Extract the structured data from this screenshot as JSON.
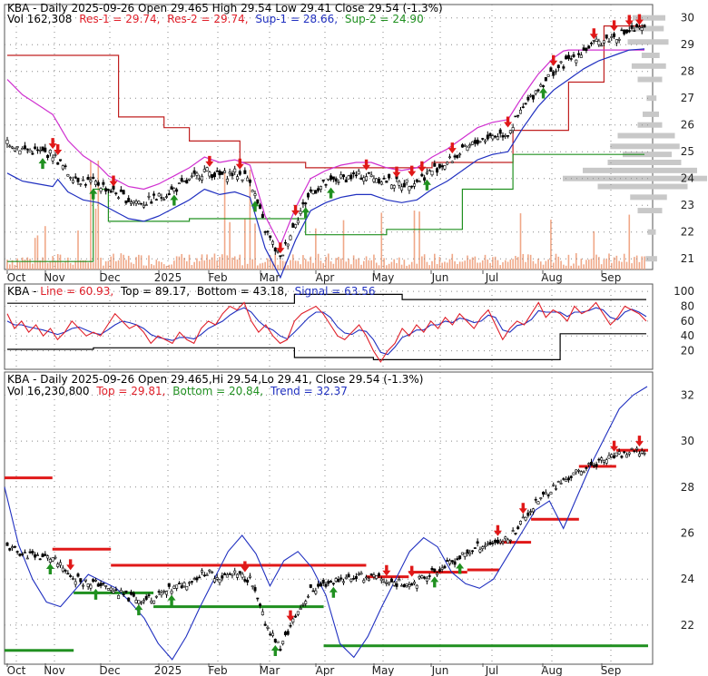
{
  "chart_data": [
    {
      "type": "candlestick",
      "panel": "price",
      "header_line1": "KBA - Daily 2025-09-26 Open 29.465  High 29.54  Low 29.41  Close 29.54  (-1.3%)",
      "header_line2": {
        "vol": "Vol 162,308",
        "res1": "Res-1 = 29.74,",
        "res2": "Res-2 = 29.74,",
        "sup1": "Sup-1 = 28.66,",
        "sup2": "Sup-2 = 24.90"
      },
      "y_ticks": [
        21,
        22,
        23,
        24,
        25,
        26,
        27,
        28,
        29,
        30
      ],
      "ylim": [
        20.6,
        30.6
      ],
      "x_labels": [
        "Oct",
        "Nov",
        "Dec",
        "2025",
        "Feb",
        "Mar",
        "Apr",
        "May",
        "Jun",
        "Jul",
        "Aug",
        "Sep"
      ],
      "close_series": {
        "x_index": [
          0,
          6,
          12,
          18,
          24,
          30,
          36,
          42,
          48,
          54,
          60,
          66,
          72,
          78,
          84,
          90,
          96,
          102,
          108,
          114,
          120,
          126,
          132,
          138,
          144,
          150,
          156,
          162,
          168,
          174,
          180,
          186,
          192,
          198,
          204,
          210,
          216,
          222,
          228,
          234,
          240,
          246,
          252
        ],
        "values": [
          25.4,
          25.1,
          25.0,
          24.9,
          24.2,
          23.9,
          23.8,
          23.5,
          23.2,
          23.1,
          23.3,
          23.6,
          23.9,
          24.3,
          24.1,
          24.2,
          24.0,
          22.1,
          21.0,
          22.4,
          23.5,
          23.8,
          24.0,
          24.1,
          24.1,
          23.9,
          23.8,
          23.9,
          24.3,
          24.6,
          25.0,
          25.4,
          25.6,
          25.7,
          26.6,
          27.4,
          28.0,
          28.4,
          28.8,
          29.1,
          29.3,
          29.5,
          29.54
        ]
      },
      "resistance_steps": [
        {
          "from": 0,
          "to": 44,
          "value": 28.6
        },
        {
          "from": 44,
          "to": 62,
          "value": 26.3
        },
        {
          "from": 62,
          "to": 72,
          "value": 25.9
        },
        {
          "from": 72,
          "to": 92,
          "value": 25.4
        },
        {
          "from": 92,
          "to": 118,
          "value": 24.6
        },
        {
          "from": 118,
          "to": 150,
          "value": 24.4
        },
        {
          "from": 150,
          "to": 168,
          "value": 24.4
        },
        {
          "from": 168,
          "to": 200,
          "value": 24.6
        },
        {
          "from": 200,
          "to": 222,
          "value": 25.8
        },
        {
          "from": 222,
          "to": 236,
          "value": 27.6
        },
        {
          "from": 236,
          "to": 252,
          "value": 29.7
        }
      ],
      "support_steps": [
        {
          "from": 0,
          "to": 34,
          "value": 20.9
        },
        {
          "from": 34,
          "to": 40,
          "value": 23.6
        },
        {
          "from": 40,
          "to": 72,
          "value": 22.4
        },
        {
          "from": 72,
          "to": 118,
          "value": 22.5
        },
        {
          "from": 118,
          "to": 150,
          "value": 21.9
        },
        {
          "from": 150,
          "to": 180,
          "value": 22.1
        },
        {
          "from": 180,
          "to": 200,
          "value": 23.6
        },
        {
          "from": 200,
          "to": 252,
          "value": 24.9
        }
      ],
      "buy_signal_x": [
        14,
        34,
        66,
        98,
        118,
        128,
        166,
        212
      ],
      "sell_signal_x": [
        18,
        20,
        42,
        80,
        92,
        108,
        114,
        142,
        154,
        160,
        164,
        176,
        198,
        216,
        232,
        240,
        246,
        250
      ]
    },
    {
      "type": "line",
      "panel": "stochastic",
      "header": {
        "title": "KBA - Line = 60.93, Top = 89.17, Bottom = 43.18, Signal = 63.56",
        "name": "KBA - ",
        "line": "Line = 60.93,",
        "top": "Top = 89.17,",
        "bottom": "Bottom = 43.18,",
        "signal": "Signal = 63.56"
      },
      "y_ticks": [
        20,
        40,
        60,
        80,
        100
      ],
      "ylim": [
        0,
        105
      ],
      "line_values": [
        70,
        50,
        60,
        45,
        55,
        40,
        50,
        35,
        45,
        60,
        50,
        40,
        45,
        40,
        55,
        70,
        60,
        50,
        55,
        45,
        30,
        40,
        35,
        30,
        45,
        35,
        30,
        50,
        60,
        55,
        70,
        80,
        75,
        85,
        60,
        45,
        55,
        40,
        30,
        35,
        60,
        70,
        75,
        80,
        70,
        55,
        40,
        35,
        45,
        55,
        40,
        20,
        5,
        20,
        30,
        50,
        40,
        55,
        45,
        60,
        50,
        65,
        55,
        70,
        60,
        50,
        65,
        75,
        55,
        35,
        50,
        60,
        55,
        70,
        85,
        65,
        75,
        70,
        60,
        80,
        70,
        75,
        85,
        70,
        55,
        65,
        80,
        75,
        70,
        60
      ],
      "signal_values": [
        60,
        55,
        55,
        52,
        50,
        48,
        45,
        42,
        45,
        50,
        52,
        48,
        44,
        42,
        48,
        55,
        60,
        58,
        55,
        50,
        42,
        38,
        36,
        34,
        38,
        38,
        36,
        42,
        50,
        55,
        60,
        68,
        74,
        78,
        72,
        60,
        52,
        48,
        40,
        36,
        45,
        55,
        65,
        72,
        72,
        65,
        52,
        44,
        42,
        48,
        46,
        35,
        18,
        15,
        25,
        38,
        42,
        48,
        48,
        55,
        55,
        60,
        58,
        64,
        62,
        58,
        60,
        68,
        65,
        48,
        45,
        54,
        56,
        62,
        74,
        72,
        72,
        72,
        66,
        72,
        72,
        74,
        78,
        75,
        65,
        62,
        72,
        76,
        72,
        66
      ],
      "top_steps": [
        {
          "from": 0,
          "to": 40,
          "value": 84
        },
        {
          "from": 40,
          "to": 55,
          "value": 96
        },
        {
          "from": 55,
          "to": 89,
          "value": 89
        }
      ],
      "bottom_steps": [
        {
          "from": 0,
          "to": 12,
          "value": 22
        },
        {
          "from": 12,
          "to": 40,
          "value": 24
        },
        {
          "from": 40,
          "to": 51,
          "value": 11
        },
        {
          "from": 51,
          "to": 77,
          "value": 8
        },
        {
          "from": 77,
          "to": 89,
          "value": 43
        }
      ]
    },
    {
      "type": "line",
      "panel": "trend",
      "header": {
        "line1": "KBA - Daily 2025-09-26 Open 29.465,Hi 29.54,Lo 29.41, Close 29.54 (-1.3%)",
        "vol": "Vol 16,230,800",
        "top": "Top = 29.81,",
        "bottom": "Bottom = 20.84,",
        "trend": "Trend = 32.37"
      },
      "y_ticks": [
        22,
        24,
        26,
        28,
        30,
        32
      ],
      "ylim": [
        20.3,
        33.0
      ],
      "trend_values": [
        28.0,
        25.5,
        24.0,
        23.0,
        22.8,
        23.5,
        24.2,
        23.9,
        23.6,
        23.0,
        22.3,
        21.2,
        20.5,
        21.5,
        22.8,
        24.0,
        25.2,
        25.9,
        25.1,
        23.7,
        24.8,
        25.2,
        24.5,
        23.3,
        21.2,
        20.6,
        21.5,
        22.8,
        24.0,
        25.2,
        25.8,
        25.4,
        24.3,
        23.8,
        23.6,
        24.0,
        25.0,
        26.0,
        27.0,
        27.4,
        26.2,
        27.6,
        29.0,
        30.2,
        31.4,
        32.0,
        32.37
      ],
      "top_bars": [
        {
          "from": 0,
          "to": 9,
          "value": 28.4
        },
        {
          "from": 9,
          "to": 20,
          "value": 25.3
        },
        {
          "from": 20,
          "to": 37,
          "value": 24.6
        },
        {
          "from": 37,
          "to": 68,
          "value": 24.6
        },
        {
          "from": 68,
          "to": 76,
          "value": 24.1
        },
        {
          "from": 76,
          "to": 87,
          "value": 24.3
        },
        {
          "from": 87,
          "to": 93,
          "value": 24.4
        },
        {
          "from": 93,
          "to": 99,
          "value": 25.6
        },
        {
          "from": 99,
          "to": 108,
          "value": 26.6
        },
        {
          "from": 108,
          "to": 115,
          "value": 28.9
        },
        {
          "from": 115,
          "to": 121,
          "value": 29.6
        }
      ],
      "bottom_bars": [
        {
          "from": 0,
          "to": 13,
          "value": 20.9
        },
        {
          "from": 13,
          "to": 28,
          "value": 23.4
        },
        {
          "from": 28,
          "to": 60,
          "value": 22.8
        },
        {
          "from": 60,
          "to": 121,
          "value": 21.1
        }
      ],
      "buy_signal_x": [
        8,
        17,
        25,
        31,
        51,
        62,
        81,
        86
      ],
      "sell_signal_x": [
        12,
        45,
        54,
        72,
        77,
        93,
        98,
        115,
        120
      ]
    }
  ]
}
